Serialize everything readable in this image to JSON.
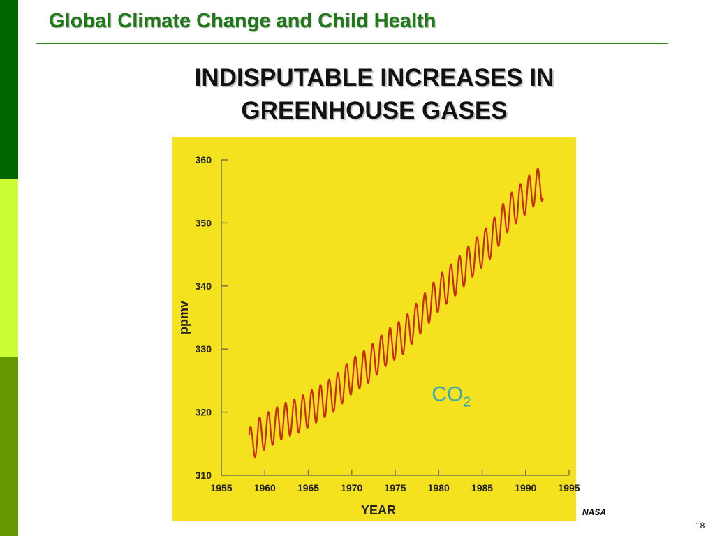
{
  "slide": {
    "header": "Global Climate Change and Child Health",
    "title_line1": "INDISPUTABLE INCREASES IN",
    "title_line2": "GREENHOUSE GASES",
    "source": "NASA",
    "page_number": "18"
  },
  "colors": {
    "bar_dark_green": "#006400",
    "bar_light_green": "#ccff33",
    "bar_olive_green": "#669900",
    "header_text": "#1e7a16",
    "chart_background": "#f5e21e",
    "series_line": "#cc2a10",
    "annotation_text": "#3aa8b8"
  },
  "chart_data": {
    "type": "line",
    "title": "",
    "xlabel": "YEAR",
    "ylabel": "ppmv",
    "xlim": [
      1955,
      1995
    ],
    "ylim": [
      310,
      360
    ],
    "x_ticks": [
      "1955",
      "1960",
      "1965",
      "1970",
      "1975",
      "1980",
      "1985",
      "1990",
      "1995"
    ],
    "y_ticks": [
      "310",
      "320",
      "330",
      "340",
      "350",
      "360"
    ],
    "annotation": {
      "text": "CO",
      "subscript": "2"
    },
    "grid": false,
    "legend": "none",
    "series": [
      {
        "x": [
          1958.2,
          1958.5,
          1959,
          1960,
          1962,
          1964,
          1966,
          1968,
          1970,
          1972,
          1974,
          1976,
          1978,
          1980,
          1982,
          1984,
          1986,
          1988,
          1990,
          1991,
          1992
        ],
        "y": [
          315.5,
          314.5,
          316.0,
          316.9,
          318.5,
          319.6,
          321.2,
          322.9,
          325.7,
          327.5,
          330.2,
          332.1,
          335.4,
          338.8,
          341.4,
          344.4,
          347.2,
          351.5,
          354.2,
          355.5,
          356.3
        ],
        "seasonal_amplitude_ppmv": 2.8
      }
    ]
  }
}
